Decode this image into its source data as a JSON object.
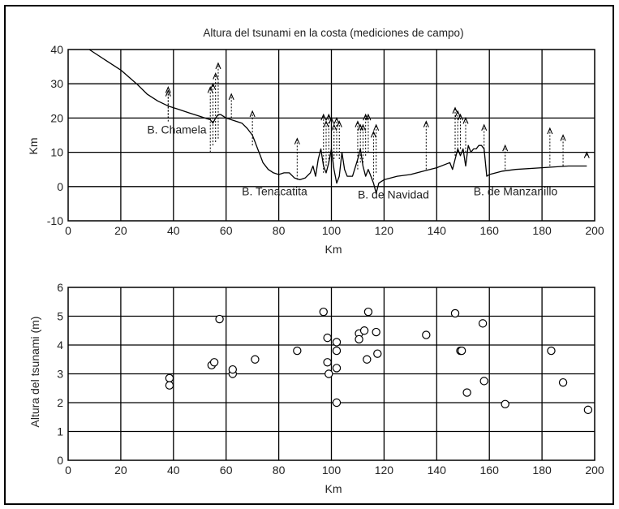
{
  "chart_data": [
    {
      "type": "line",
      "title": "Altura del tsunami en la costa (mediciones de campo)",
      "xlabel": "Km",
      "ylabel": "Km",
      "xlim": [
        0,
        200
      ],
      "ylim": [
        -10,
        40
      ],
      "xticks": [
        0,
        20,
        40,
        60,
        80,
        100,
        120,
        140,
        160,
        180,
        200
      ],
      "yticks": [
        -10,
        0,
        10,
        20,
        30,
        40
      ],
      "grid": true,
      "coastline": {
        "x": [
          8,
          14,
          20,
          26,
          30,
          34,
          38,
          42,
          46,
          50,
          54,
          55,
          56,
          57,
          58,
          60,
          62,
          64,
          66,
          68,
          70,
          71,
          72,
          73,
          74,
          76,
          78,
          80,
          82,
          84,
          86,
          88,
          90,
          92,
          93,
          94,
          95,
          96,
          97,
          98,
          99,
          100,
          101,
          102,
          103,
          104,
          105,
          106,
          108,
          110,
          111,
          112,
          113,
          114,
          115,
          116,
          117,
          118,
          120,
          125,
          130,
          135,
          140,
          145,
          146,
          147,
          148,
          149,
          150,
          151,
          152,
          153,
          154,
          155,
          156,
          157,
          158,
          159,
          160,
          165,
          170,
          180,
          190,
          197
        ],
        "y": [
          40,
          37,
          34,
          30,
          27,
          25,
          23.5,
          22.5,
          21.5,
          20.5,
          19.5,
          18.5,
          20,
          21,
          21,
          20,
          19.5,
          19,
          18.5,
          17,
          15,
          13,
          11,
          9,
          7,
          5,
          4,
          3.5,
          4,
          4,
          2.5,
          2,
          2.5,
          4,
          6,
          3,
          8,
          11,
          6,
          4,
          7,
          11,
          5,
          1,
          3,
          10,
          5,
          3,
          3,
          8,
          11,
          6,
          3,
          5,
          3,
          1,
          -2,
          1,
          2,
          3,
          3.5,
          4.5,
          5.5,
          7,
          5,
          8,
          11,
          9,
          11,
          6,
          12,
          10,
          11,
          11,
          12,
          12,
          11,
          3,
          3.5,
          4.5,
          5,
          5.5,
          6,
          6
        ]
      },
      "arrows": {
        "x": [
          38,
          38,
          54,
          55,
          56,
          57,
          62,
          70,
          87,
          97,
          98,
          99,
          100,
          101,
          102,
          103,
          110,
          111,
          112,
          113,
          114,
          116,
          117,
          136,
          147,
          148,
          149,
          151,
          158,
          166,
          183,
          188,
          197
        ],
        "base_y": [
          19,
          20,
          10,
          12,
          13,
          14,
          20,
          12,
          2,
          4,
          6,
          7,
          8,
          8,
          9,
          8,
          5,
          7,
          7,
          9,
          10,
          2,
          4,
          5,
          9,
          10,
          11,
          10,
          10,
          5,
          6,
          6,
          9
        ],
        "tip_y": [
          28,
          29,
          29,
          30,
          33,
          36,
          27,
          22,
          14,
          21,
          19,
          21,
          20,
          18,
          20,
          19,
          19,
          18,
          18,
          21,
          21,
          16,
          18,
          19,
          23,
          22,
          21,
          20,
          18,
          12,
          17,
          15,
          10
        ]
      },
      "annotations": [
        {
          "text": "B. Chamela",
          "x": 30,
          "y": 15.5
        },
        {
          "text": "B. Tenacatita",
          "x": 66,
          "y": -2.5
        },
        {
          "text": "B. de Navidad",
          "x": 110,
          "y": -3.5
        },
        {
          "text": "B. de Manzanillo",
          "x": 154,
          "y": -2.5
        }
      ]
    },
    {
      "type": "scatter",
      "title": "",
      "xlabel": "Km",
      "ylabel": "Altura del tsunami (m)",
      "xlim": [
        0,
        200
      ],
      "ylim": [
        0,
        6
      ],
      "xticks": [
        0,
        20,
        40,
        60,
        80,
        100,
        120,
        140,
        160,
        180,
        200
      ],
      "yticks": [
        0,
        1,
        2,
        3,
        4,
        5,
        6
      ],
      "grid": true,
      "marker": "open-circle",
      "x": [
        38.5,
        38.5,
        54.5,
        55.5,
        57.5,
        62.5,
        62.5,
        71,
        87,
        97,
        98.5,
        98.5,
        99,
        102,
        102,
        102,
        102,
        110.5,
        110.5,
        112.5,
        113.5,
        114,
        117,
        117.5,
        136,
        147,
        149,
        149.5,
        151.5,
        157.5,
        158,
        166,
        183.5,
        188,
        197.5
      ],
      "y": [
        2.85,
        2.6,
        3.3,
        3.4,
        4.9,
        3.0,
        3.15,
        3.5,
        3.8,
        5.15,
        4.25,
        3.4,
        3.0,
        4.1,
        3.8,
        3.2,
        2.0,
        4.4,
        4.2,
        4.5,
        3.5,
        5.15,
        4.45,
        3.7,
        4.35,
        5.1,
        3.8,
        3.8,
        2.35,
        4.75,
        2.75,
        1.95,
        3.8,
        2.7,
        1.75
      ]
    }
  ]
}
